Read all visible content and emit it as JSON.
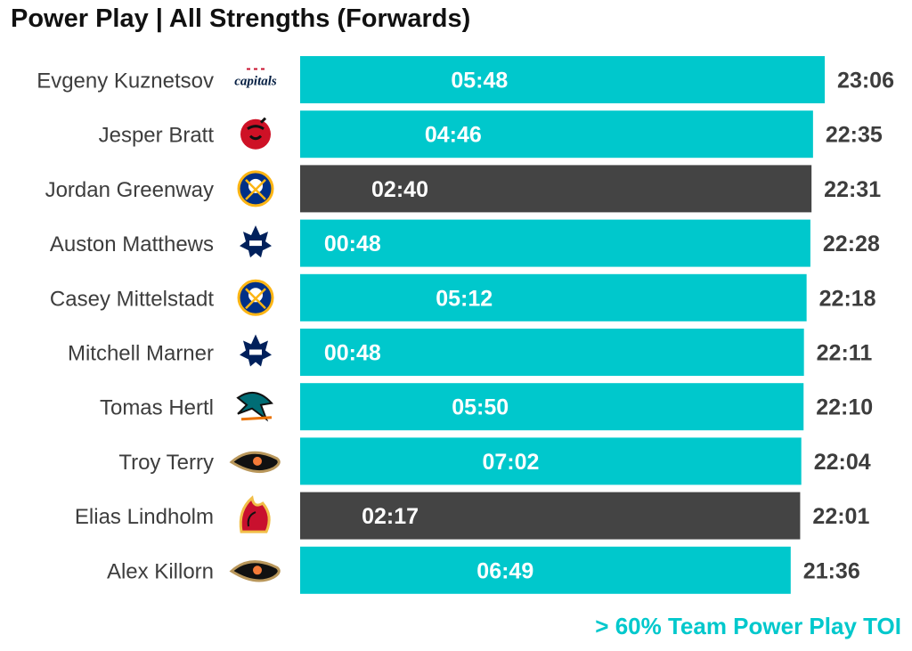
{
  "chart_data": {
    "type": "bar",
    "orientation": "horizontal",
    "title": "Power Play | All Strengths (Forwards)",
    "categories": [
      "Evgeny Kuznetsov",
      "Jesper Bratt",
      "Jordan Greenway",
      "Auston Matthews",
      "Casey Mittelstadt",
      "Mitchell Marner",
      "Tomas Hertl",
      "Troy Terry",
      "Elias Lindholm",
      "Alex Killorn"
    ],
    "teams": [
      "Washington Capitals",
      "New Jersey Devils",
      "Buffalo Sabres",
      "Toronto Maple Leafs",
      "Buffalo Sabres",
      "Toronto Maple Leafs",
      "San Jose Sharks",
      "Anaheim Ducks",
      "Calgary Flames",
      "Anaheim Ducks"
    ],
    "team_icons": [
      "capitals-logo-icon",
      "devils-logo-icon",
      "sabres-logo-icon",
      "maple-leafs-logo-icon",
      "sabres-logo-icon",
      "maple-leafs-logo-icon",
      "sharks-logo-icon",
      "ducks-logo-icon",
      "flames-logo-icon",
      "ducks-logo-icon"
    ],
    "toi_labels": [
      "23:06",
      "22:35",
      "22:31",
      "22:28",
      "22:18",
      "22:11",
      "22:10",
      "22:04",
      "22:01",
      "21:36"
    ],
    "toi_minutes": [
      23.1,
      22.583,
      22.517,
      22.467,
      22.3,
      22.183,
      22.167,
      22.067,
      22.017,
      21.6
    ],
    "pp_labels": [
      "05:48",
      "04:46",
      "02:40",
      "00:48",
      "05:12",
      "00:48",
      "05:50",
      "07:02",
      "02:17",
      "06:49"
    ],
    "pp_minutes": [
      5.8,
      4.767,
      2.667,
      0.8,
      5.2,
      0.8,
      5.833,
      7.033,
      2.283,
      6.817
    ],
    "above_60pct_team_pp": [
      true,
      true,
      false,
      true,
      true,
      true,
      true,
      true,
      false,
      true
    ],
    "colors": {
      "highlight": "#00c8cc",
      "other": "#444444"
    },
    "legend_note": "> 60% Team Power Play TOI"
  }
}
